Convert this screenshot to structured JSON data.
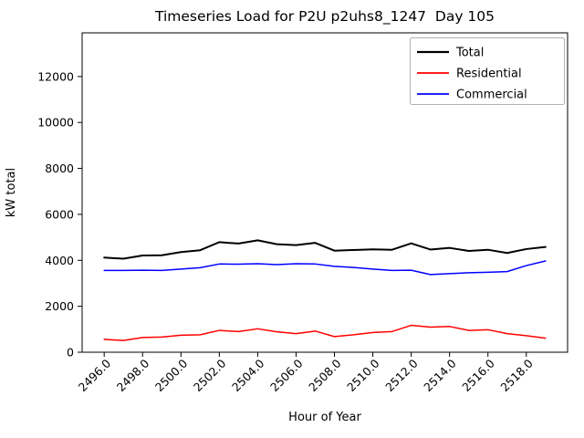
{
  "chart_data": {
    "type": "line",
    "title": "Timeseries Load for P2U p2uhs8_1247  Day 105",
    "xlabel": "Hour of Year",
    "ylabel": "kW total",
    "x": [
      2496,
      2497,
      2498,
      2499,
      2500,
      2501,
      2502,
      2503,
      2504,
      2505,
      2506,
      2507,
      2508,
      2509,
      2510,
      2511,
      2512,
      2513,
      2514,
      2515,
      2516,
      2517,
      2518,
      2519
    ],
    "series": [
      {
        "name": "Total",
        "color": "#000000",
        "linewidth": 2,
        "values": [
          4120,
          4070,
          4210,
          4220,
          4360,
          4440,
          4790,
          4730,
          4870,
          4700,
          4660,
          4760,
          4420,
          4450,
          4480,
          4460,
          4740,
          4470,
          4540,
          4410,
          4460,
          4320,
          4490,
          4580
        ]
      },
      {
        "name": "Residential",
        "color": "#ff0000",
        "linewidth": 1.5,
        "values": [
          560,
          510,
          640,
          660,
          740,
          760,
          950,
          900,
          1020,
          890,
          810,
          920,
          680,
          760,
          860,
          900,
          1170,
          1090,
          1120,
          950,
          980,
          810,
          720,
          610
        ]
      },
      {
        "name": "Commercial",
        "color": "#0000ff",
        "linewidth": 1.5,
        "values": [
          3560,
          3560,
          3570,
          3560,
          3620,
          3680,
          3840,
          3830,
          3850,
          3810,
          3850,
          3840,
          3740,
          3690,
          3620,
          3560,
          3570,
          3380,
          3420,
          3460,
          3480,
          3510,
          3770,
          3970
        ]
      }
    ],
    "xlim": [
      2494.85,
      2520.15
    ],
    "ylim": [
      0,
      13900
    ],
    "xticks": [
      2496,
      2498,
      2500,
      2502,
      2504,
      2506,
      2508,
      2510,
      2512,
      2514,
      2516,
      2518
    ],
    "yticks": [
      0,
      2000,
      4000,
      6000,
      8000,
      10000,
      12000
    ],
    "xtick_rotation": 45,
    "grid": false,
    "legend_position": "upper right"
  }
}
